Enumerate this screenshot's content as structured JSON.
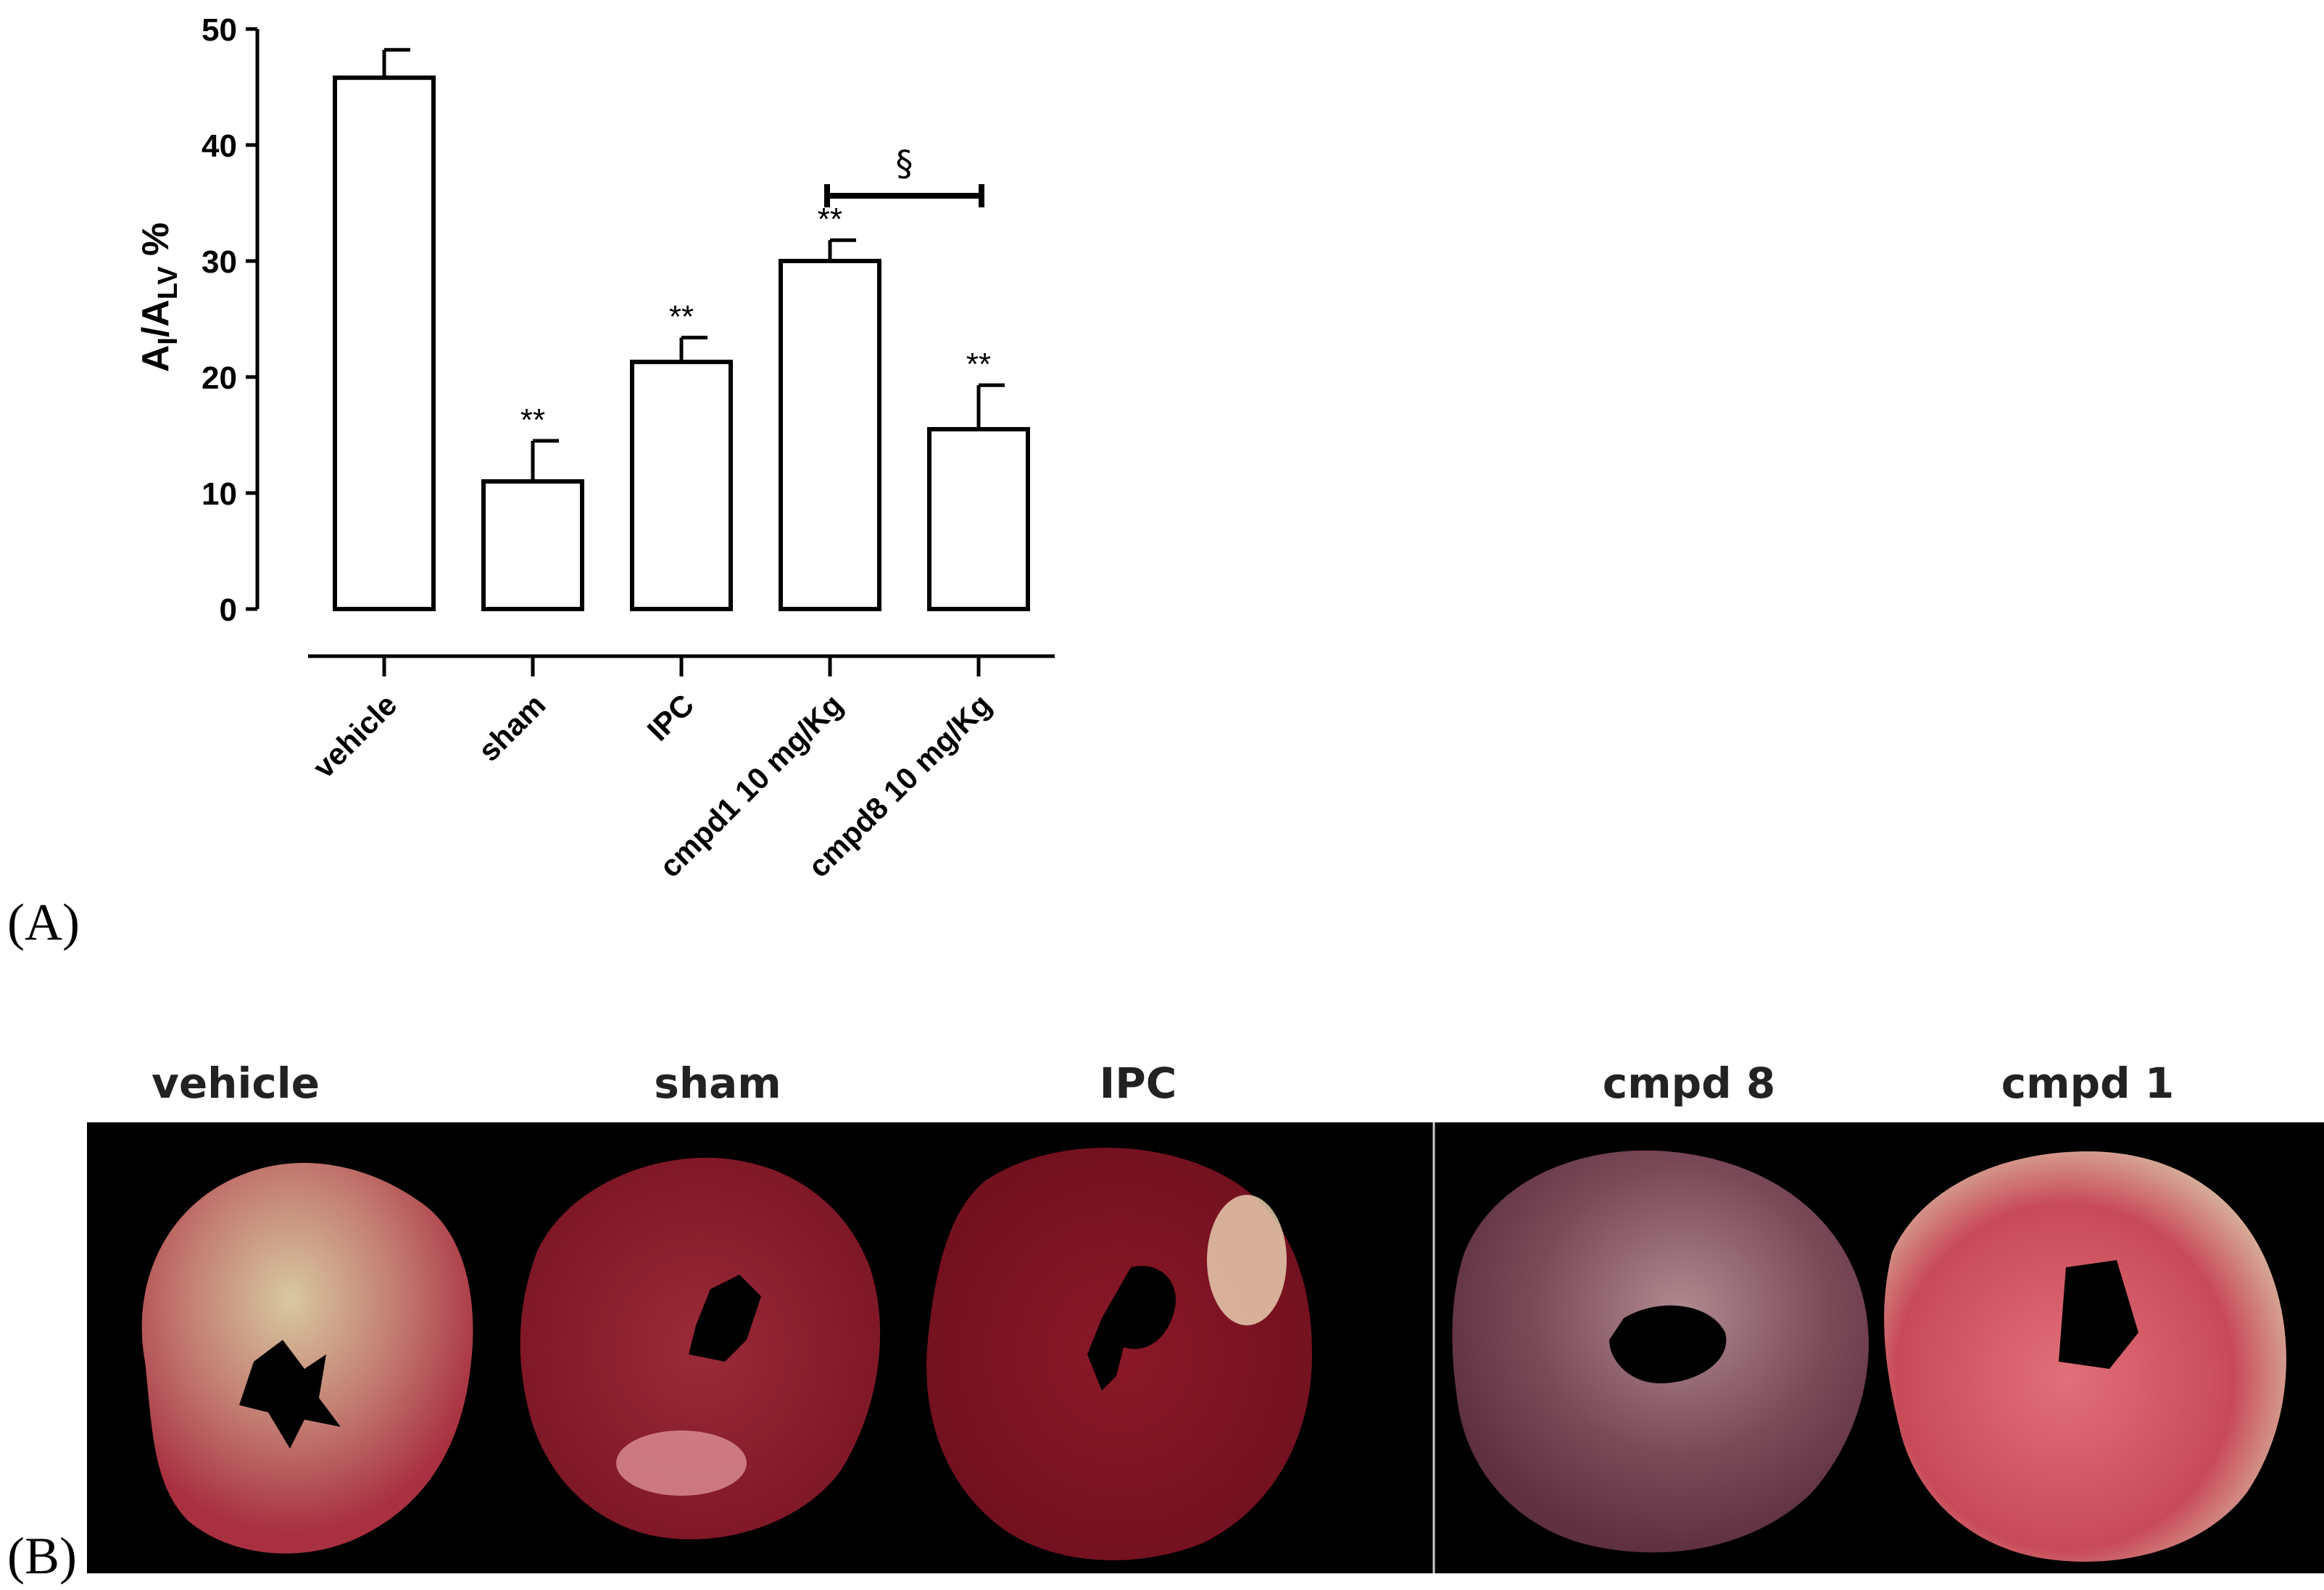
{
  "panel_labels": {
    "a": "(A)",
    "b": "(B)"
  },
  "chart_data": {
    "type": "bar",
    "categories": [
      "vehicle",
      "sham",
      "IPC",
      "cmpd1 10 mg/Kg",
      "cmpd8 10 mg/Kg"
    ],
    "values": [
      45.8,
      11.0,
      21.3,
      30.0,
      15.5
    ],
    "errors": [
      2.4,
      3.5,
      2.1,
      1.8,
      3.8
    ],
    "significance": [
      "",
      "**",
      "**",
      "**",
      "**"
    ],
    "comparison": {
      "from": "cmpd1 10 mg/Kg",
      "to": "cmpd8 10 mg/Kg",
      "label": "§"
    },
    "ylabel": {
      "main": "A",
      "sub1": "I",
      "sep": "/A",
      "sub2": "LV",
      "suffix": " %"
    },
    "yticks": [
      0,
      10,
      20,
      30,
      40,
      50
    ],
    "ylim": [
      0,
      50
    ],
    "bar_fill": "#ffffff",
    "bar_stroke": "#000000"
  },
  "photo_panel": {
    "captions": [
      "vehicle",
      "sham",
      "IPC",
      "cmpd 8",
      "cmpd 1"
    ],
    "tissue_colors": [
      "#b03040",
      "#8a1828",
      "#7c1020",
      "#6e3a4a",
      "#c84a58"
    ],
    "background": "#000000"
  }
}
